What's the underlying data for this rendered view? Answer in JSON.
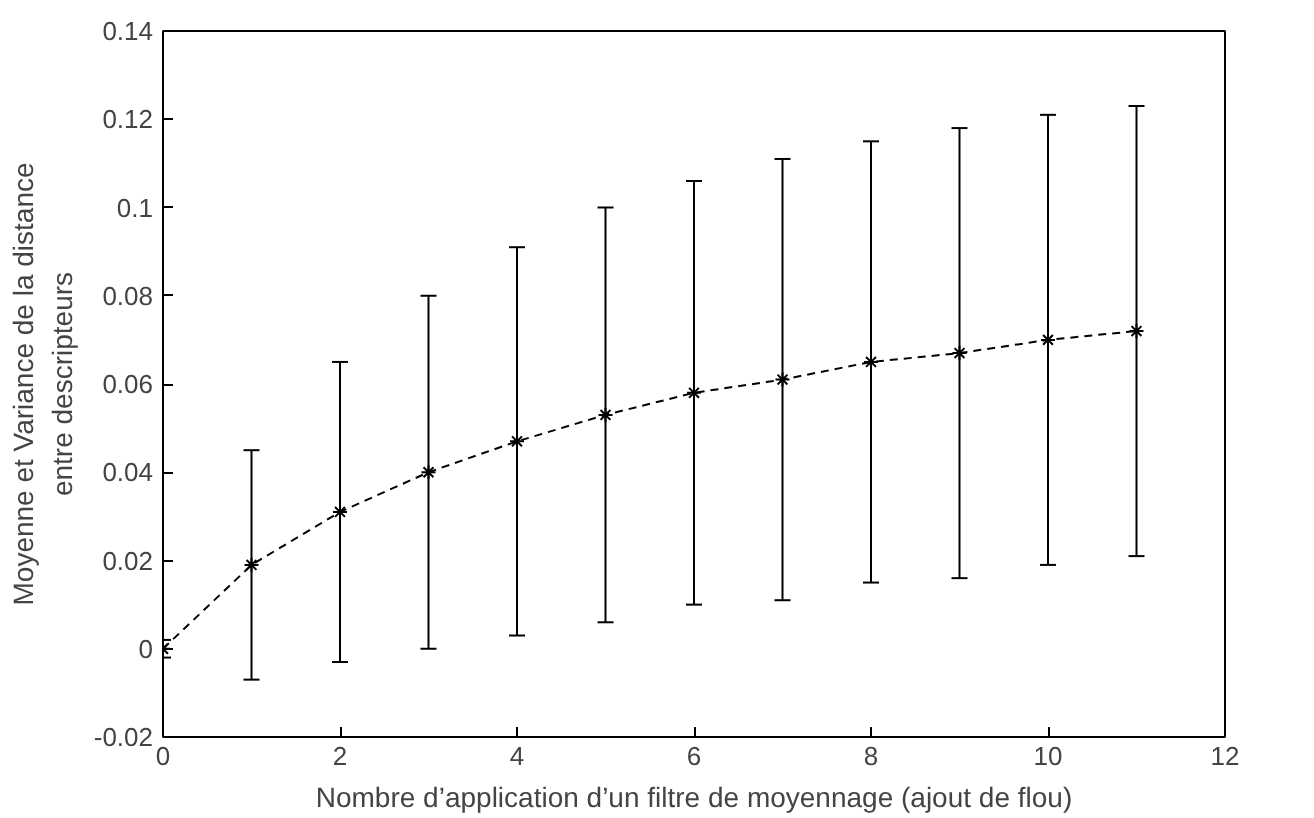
{
  "chart_data": {
    "type": "line",
    "xlabel": "Nombre d’application d’un filtre de moyennage (ajout de flou)",
    "ylabel": "Moyenne et Variance de la distance\nentre descripteurs",
    "x": [
      0,
      1,
      2,
      3,
      4,
      5,
      6,
      7,
      8,
      9,
      10,
      11
    ],
    "values": [
      0.0,
      0.019,
      0.031,
      0.04,
      0.047,
      0.053,
      0.058,
      0.061,
      0.065,
      0.067,
      0.07,
      0.072
    ],
    "errors": [
      0.002,
      0.026,
      0.034,
      0.04,
      0.044,
      0.047,
      0.048,
      0.05,
      0.05,
      0.051,
      0.051,
      0.051
    ],
    "color": "#000000",
    "marker": "cross",
    "line_style": "dashed",
    "grid": false,
    "xlim": [
      0,
      12
    ],
    "xticks": [
      0,
      2,
      4,
      6,
      8,
      10,
      12
    ],
    "ylim": [
      -0.02,
      0.14
    ],
    "yticks": [
      -0.02,
      0,
      0.02,
      0.04,
      0.06,
      0.08,
      0.1,
      0.12,
      0.14
    ]
  }
}
